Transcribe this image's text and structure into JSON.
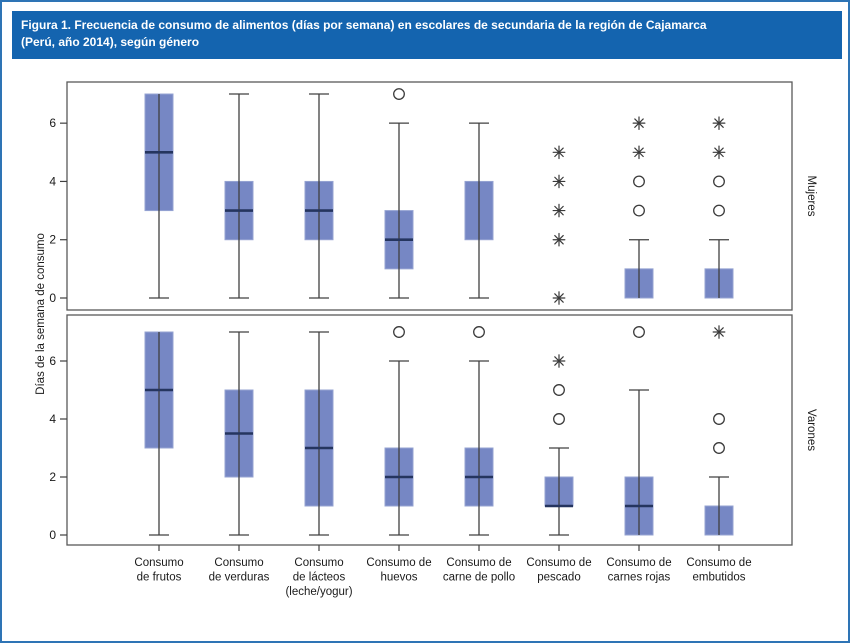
{
  "chart_data": {
    "type": "boxplot",
    "title_lines": [
      "Figura 1. Frecuencia de consumo de alimentos (días por semana) en escolares de secundaria de la región de Cajamarca",
      "(Perú, año 2014), según género"
    ],
    "ylabel": "Días de la semana de consumo",
    "yticks": [
      0,
      2,
      4,
      6
    ],
    "ylim": [
      -0.4,
      7.45
    ],
    "categories": [
      [
        "Consumo",
        "de frutos"
      ],
      [
        "Consumo",
        "de verduras"
      ],
      [
        "Consumo",
        "de lácteos",
        "(leche/yogur)"
      ],
      [
        "Consumo de",
        "huevos"
      ],
      [
        "Consumo de",
        "carne de pollo"
      ],
      [
        "Consumo de",
        "pescado"
      ],
      [
        "Consumo de",
        "carnes rojas"
      ],
      [
        "Consumo de",
        "embutidos"
      ]
    ],
    "panels": [
      {
        "label": "Mujeres",
        "boxes": [
          {
            "q1": 3,
            "q3": 7,
            "median": 5,
            "whisker_low": 0,
            "whisker_high": 7,
            "outliers": {
              "circles": [],
              "asterisks": []
            }
          },
          {
            "q1": 2,
            "q3": 4,
            "median": 3,
            "whisker_low": 0,
            "whisker_high": 7,
            "outliers": {
              "circles": [],
              "asterisks": []
            }
          },
          {
            "q1": 2,
            "q3": 4,
            "median": 3,
            "whisker_low": 0,
            "whisker_high": 7,
            "outliers": {
              "circles": [],
              "asterisks": []
            }
          },
          {
            "q1": 1,
            "q3": 3,
            "median": 2,
            "whisker_low": 0,
            "whisker_high": 6,
            "outliers": {
              "circles": [
                7
              ],
              "asterisks": []
            }
          },
          {
            "q1": 2,
            "q3": 4,
            "median": null,
            "whisker_low": 0,
            "whisker_high": 6,
            "outliers": {
              "circles": [],
              "asterisks": []
            }
          },
          {
            "q1": null,
            "q3": null,
            "median": null,
            "whisker_low": null,
            "whisker_high": null,
            "outliers": {
              "circles": [],
              "asterisks": [
                5,
                4,
                3,
                2,
                0
              ]
            }
          },
          {
            "q1": 0,
            "q3": 1,
            "median": null,
            "whisker_low": 0,
            "whisker_high": 2,
            "outliers": {
              "circles": [
                4,
                3
              ],
              "asterisks": [
                6,
                5
              ]
            }
          },
          {
            "q1": 0,
            "q3": 1,
            "median": null,
            "whisker_low": 0,
            "whisker_high": 2,
            "outliers": {
              "circles": [
                4,
                3
              ],
              "asterisks": [
                6,
                5
              ]
            }
          }
        ]
      },
      {
        "label": "Varones",
        "boxes": [
          {
            "q1": 3,
            "q3": 7,
            "median": 5,
            "whisker_low": 0,
            "whisker_high": 7,
            "outliers": {
              "circles": [],
              "asterisks": []
            }
          },
          {
            "q1": 2,
            "q3": 5,
            "median": 3.5,
            "whisker_low": 0,
            "whisker_high": 7,
            "outliers": {
              "circles": [],
              "asterisks": []
            }
          },
          {
            "q1": 1,
            "q3": 5,
            "median": 3,
            "whisker_low": 0,
            "whisker_high": 7,
            "outliers": {
              "circles": [],
              "asterisks": []
            }
          },
          {
            "q1": 1,
            "q3": 3,
            "median": 2,
            "whisker_low": 0,
            "whisker_high": 6,
            "outliers": {
              "circles": [
                7
              ],
              "asterisks": []
            }
          },
          {
            "q1": 1,
            "q3": 3,
            "median": 2,
            "whisker_low": 0,
            "whisker_high": 6,
            "outliers": {
              "circles": [
                7
              ],
              "asterisks": []
            }
          },
          {
            "q1": 1,
            "q3": 2,
            "median": 1,
            "whisker_low": 0,
            "whisker_high": 3,
            "outliers": {
              "circles": [
                5,
                4
              ],
              "asterisks": [
                6
              ]
            }
          },
          {
            "q1": 0,
            "q3": 2,
            "median": 1,
            "whisker_low": 0,
            "whisker_high": 5,
            "outliers": {
              "circles": [
                7
              ],
              "asterisks": []
            }
          },
          {
            "q1": 0,
            "q3": 1,
            "median": null,
            "whisker_low": 0,
            "whisker_high": 2,
            "outliers": {
              "circles": [
                4,
                3
              ],
              "asterisks": [
                7
              ]
            }
          }
        ]
      }
    ]
  },
  "colors": {
    "title_bar_bg": "#1464af",
    "outer_border": "#2e74b5",
    "box_fill": "#7687c4",
    "box_edge": "#95a3d2",
    "whisker_line": "#404040",
    "median_line": "#25355f",
    "panel_border": "#595959",
    "marker_stroke": "#3a3a3a",
    "tick_text": "#1a1a1a"
  }
}
